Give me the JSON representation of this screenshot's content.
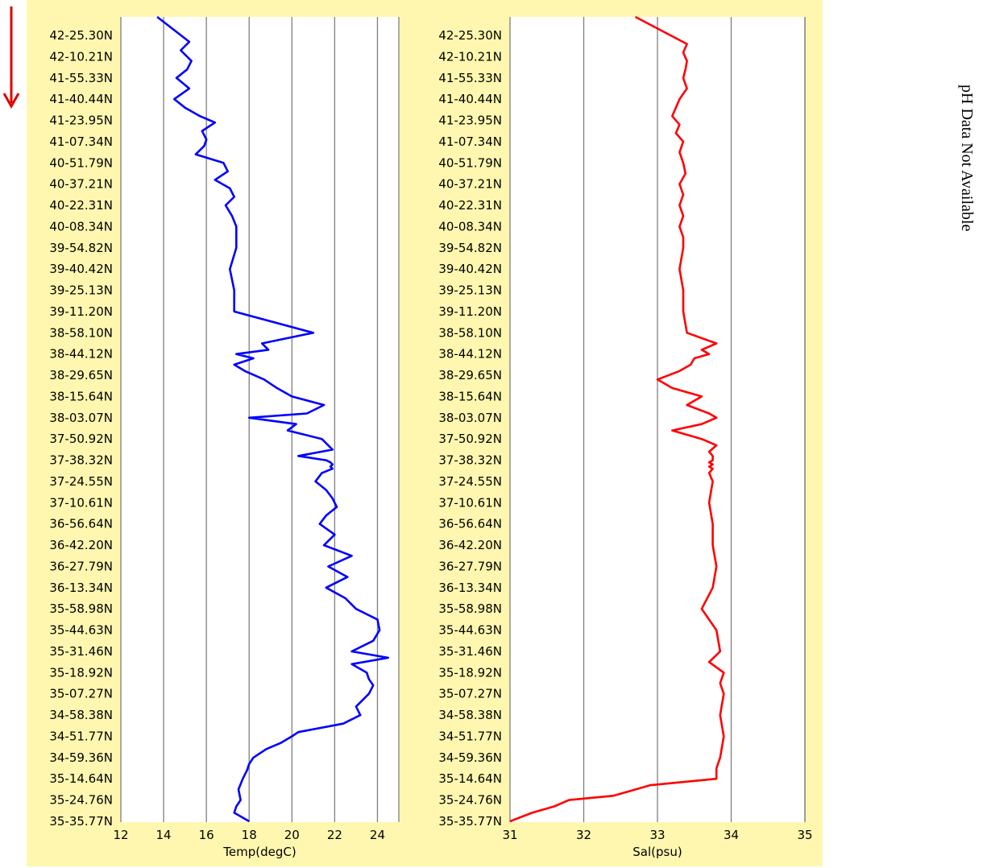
{
  "side_note": "pH Data Not Available",
  "colors": {
    "panel_bg": "#fff7b0",
    "temp_line": "#0000ff",
    "sal_line": "#ff0000",
    "grid": "#7f7f7f",
    "arrow": "#e00000"
  },
  "latitude_labels": [
    "42-25.30N",
    "42-10.21N",
    "41-55.33N",
    "41-40.44N",
    "41-23.95N",
    "41-07.34N",
    "40-51.79N",
    "40-37.21N",
    "40-22.31N",
    "40-08.34N",
    "39-54.82N",
    "39-40.42N",
    "39-25.13N",
    "39-11.20N",
    "38-58.10N",
    "38-44.12N",
    "38-29.65N",
    "38-15.64N",
    "38-03.07N",
    "37-50.92N",
    "37-38.32N",
    "37-24.55N",
    "37-10.61N",
    "36-56.64N",
    "36-42.20N",
    "36-27.79N",
    "36-13.34N",
    "35-58.98N",
    "35-44.63N",
    "35-31.46N",
    "35-18.92N",
    "35-07.27N",
    "34-58.38N",
    "34-51.77N",
    "34-59.36N",
    "35-14.64N",
    "35-24.76N",
    "35-35.77N"
  ],
  "chart_data": [
    {
      "type": "line",
      "xlabel": "Temp(degC)",
      "xlim": [
        12,
        25
      ],
      "xticks": [
        "12",
        "14",
        "16",
        "18",
        "20",
        "22",
        "24"
      ],
      "xtick_values": [
        12,
        14,
        16,
        18,
        20,
        22,
        24
      ],
      "grid": true,
      "series": [
        {
          "y": [
            0,
            0.3,
            0.7,
            1.2,
            1.6,
            2,
            2.5,
            3,
            3.4,
            3.8,
            4.1,
            4.5,
            4.9,
            5.2,
            5.6,
            6,
            6.4,
            6.8,
            7.2,
            7.6,
            8,
            8.5,
            9,
            9.5,
            10,
            11,
            12,
            13,
            14,
            14.5,
            14.8,
            15,
            15.2,
            15.5,
            15.8,
            16.2,
            16.6,
            17,
            17.4,
            17.8,
            18,
            18.3,
            18.6,
            19,
            19.2,
            19.5,
            19.8,
            20,
            20.1,
            20.2,
            20.3,
            20.4,
            20.6,
            21,
            21.4,
            21.8,
            22.2,
            22.6,
            23,
            23.5,
            24,
            24.5,
            25,
            25.5,
            26,
            26.5,
            27,
            27.5,
            28,
            28.5,
            29,
            29.3,
            29.6,
            30,
            30.3,
            30.6,
            31,
            31.3,
            31.6,
            32,
            32.4,
            32.8,
            33,
            33.3,
            33.6,
            34,
            34.3,
            34.6,
            35,
            35.5,
            36,
            36.3,
            36.6,
            37
          ],
          "values": [
            13.7,
            15.2,
            14.8,
            15.3,
            15.1,
            14.6,
            15.2,
            14.5,
            15.0,
            15.7,
            16.4,
            15.8,
            16.0,
            15.9,
            15.5,
            16.8,
            17.0,
            16.4,
            17.1,
            17.3,
            16.9,
            17.2,
            17.4,
            17.4,
            17.4,
            17.1,
            17.3,
            17.3,
            21.0,
            18.6,
            18.9,
            17.4,
            18.2,
            17.3,
            17.8,
            18.7,
            19.3,
            20.0,
            21.5,
            20.7,
            18.0,
            20.2,
            19.8,
            21.4,
            21.6,
            21.9,
            20.3,
            21.6,
            21.8,
            21.9,
            21.8,
            21.9,
            21.4,
            21.1,
            21.6,
            21.9,
            22.1,
            21.6,
            21.3,
            22.0,
            21.5,
            22.8,
            21.7,
            22.6,
            21.6,
            22.5,
            23.0,
            24.0,
            24.1,
            23.8,
            22.8,
            24.5,
            22.8,
            23.5,
            23.6,
            23.8,
            23.6,
            23.3,
            23.0,
            23.2,
            22.4,
            20.3,
            20.0,
            19.5,
            18.8,
            18.2,
            18.0,
            17.9,
            17.7,
            17.5,
            17.6,
            17.4,
            17.3,
            18.0
          ]
        }
      ]
    },
    {
      "type": "line",
      "xlabel": "Sal(psu)",
      "xlim": [
        31,
        35
      ],
      "xticks": [
        "31",
        "32",
        "33",
        "34",
        "35"
      ],
      "xtick_values": [
        31,
        32,
        33,
        34,
        35
      ],
      "grid": true,
      "series": [
        {
          "y": [
            0,
            0.4,
            0.8,
            1.2,
            1.6,
            2,
            2.5,
            3,
            3.4,
            3.8,
            4.2,
            4.6,
            5,
            5.5,
            6,
            6.5,
            7,
            7.5,
            8,
            8.5,
            9,
            9.5,
            10,
            11,
            12,
            13,
            14,
            14.5,
            14.8,
            15,
            15.2,
            15.5,
            15.8,
            16.2,
            16.6,
            17,
            17.4,
            17.8,
            18,
            18.3,
            18.6,
            19,
            19.3,
            19.6,
            19.8,
            20,
            20.1,
            20.2,
            20.3,
            20.4,
            20.6,
            21,
            22,
            23,
            24,
            25,
            26,
            27,
            28,
            29,
            29.5,
            30,
            30.5,
            31,
            32,
            33,
            34,
            34.5,
            35,
            35.3,
            35.6,
            35.8,
            36,
            36.3,
            36.6,
            37
          ],
          "values": [
            32.7,
            33.4,
            33.35,
            33.4,
            33.38,
            33.35,
            33.4,
            33.3,
            33.25,
            33.2,
            33.3,
            33.25,
            33.35,
            33.3,
            33.35,
            33.38,
            33.3,
            33.35,
            33.3,
            33.35,
            33.3,
            33.35,
            33.35,
            33.3,
            33.35,
            33.35,
            33.4,
            33.8,
            33.6,
            33.7,
            33.5,
            33.45,
            33.3,
            33.0,
            33.2,
            33.6,
            33.4,
            33.7,
            33.8,
            33.6,
            33.2,
            33.6,
            33.8,
            33.7,
            33.75,
            33.75,
            33.7,
            33.75,
            33.7,
            33.75,
            33.7,
            33.75,
            33.7,
            33.75,
            33.75,
            33.8,
            33.75,
            33.6,
            33.8,
            33.85,
            33.7,
            33.9,
            33.85,
            33.9,
            33.85,
            33.9,
            33.85,
            33.8,
            33.8,
            32.9,
            32.6,
            32.4,
            31.8,
            31.6,
            31.3,
            31.0
          ]
        }
      ]
    }
  ]
}
